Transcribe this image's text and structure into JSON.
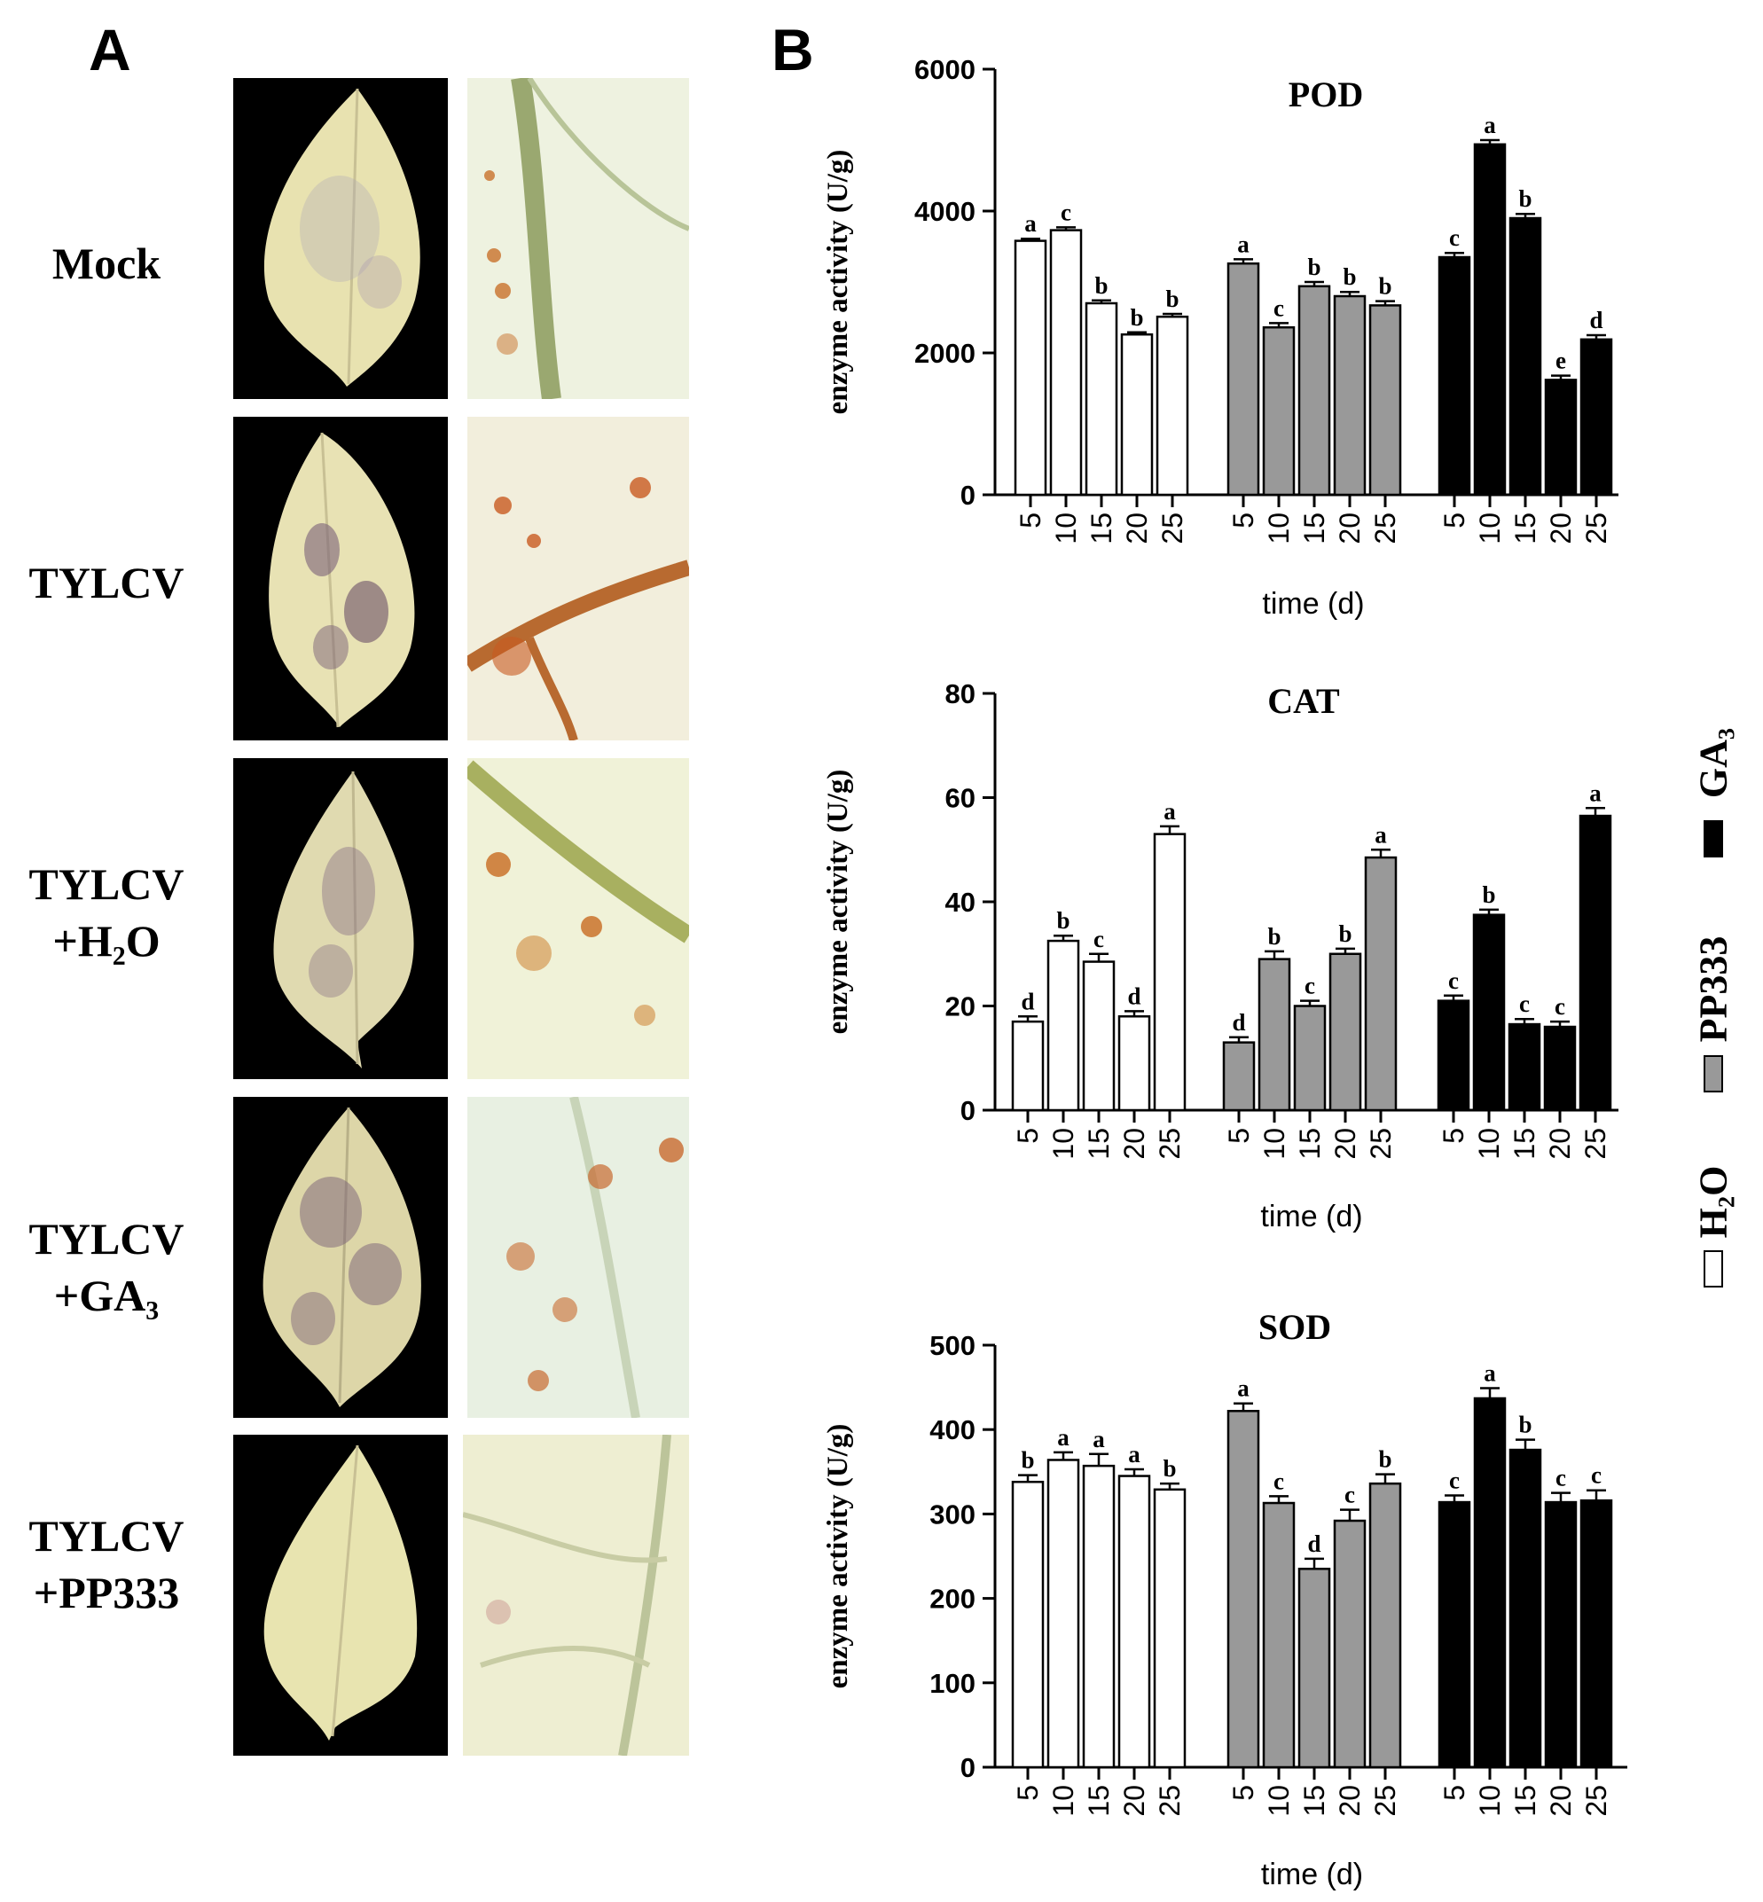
{
  "panel_a": {
    "letter": "A",
    "rows": [
      {
        "lines": [
          "Mock"
        ]
      },
      {
        "lines": [
          "TYLCV"
        ]
      },
      {
        "lines": [
          "TYLCV",
          "+H₂O"
        ]
      },
      {
        "lines": [
          "TYLCV",
          "+GA₃"
        ]
      },
      {
        "lines": [
          "TYLCV",
          "+PP333"
        ]
      }
    ]
  },
  "panel_b": {
    "letter": "B"
  },
  "legend": [
    {
      "label": "GA₃",
      "color": "#000000"
    },
    {
      "label": "PP333",
      "color": "#999999"
    },
    {
      "label": "H₂O",
      "color": "#ffffff"
    }
  ],
  "chart_data": [
    {
      "type": "bar",
      "title": "POD",
      "ylabel": "enzyme activity (U/g)",
      "xlabel": "time (d)",
      "ylim": [
        0,
        6000
      ],
      "yticks": [
        0,
        2000,
        4000,
        6000
      ],
      "categories": [
        "5",
        "10",
        "15",
        "20",
        "25"
      ],
      "series": [
        {
          "color": "#ffffff",
          "values": [
            3580,
            3730,
            2700,
            2260,
            2510
          ],
          "errors": [
            30,
            40,
            40,
            30,
            40
          ],
          "letters": [
            "a",
            "c",
            "b",
            "b",
            "b"
          ]
        },
        {
          "color": "#999999",
          "values": [
            3260,
            2360,
            2940,
            2800,
            2670
          ],
          "errors": [
            60,
            60,
            60,
            60,
            60
          ],
          "letters": [
            "a",
            "c",
            "b",
            "b",
            "b"
          ]
        },
        {
          "color": "#000000",
          "values": [
            3350,
            4940,
            3900,
            1620,
            2190
          ],
          "errors": [
            60,
            60,
            60,
            60,
            60
          ],
          "letters": [
            "c",
            "a",
            "b",
            "e",
            "d"
          ]
        }
      ]
    },
    {
      "type": "bar",
      "title": "CAT",
      "ylabel": "enzyme activity (U/g)",
      "xlabel": "time (d)",
      "ylim": [
        0,
        80
      ],
      "yticks": [
        0,
        20,
        40,
        60,
        80
      ],
      "categories": [
        "5",
        "10",
        "15",
        "20",
        "25"
      ],
      "series": [
        {
          "color": "#ffffff",
          "values": [
            17,
            32.5,
            28.5,
            18,
            53
          ],
          "errors": [
            1,
            1,
            1.5,
            1,
            1.5
          ],
          "letters": [
            "d",
            "b",
            "c",
            "d",
            "a"
          ]
        },
        {
          "color": "#999999",
          "values": [
            13,
            29,
            20,
            30,
            48.5
          ],
          "errors": [
            1,
            1.5,
            1,
            1,
            1.5
          ],
          "letters": [
            "d",
            "b",
            "c",
            "b",
            "a"
          ]
        },
        {
          "color": "#000000",
          "values": [
            21,
            37.5,
            16.5,
            16,
            56.5
          ],
          "errors": [
            1,
            1,
            1,
            1,
            1.5
          ],
          "letters": [
            "c",
            "b",
            "c",
            "c",
            "a"
          ]
        }
      ]
    },
    {
      "type": "bar",
      "title": "SOD",
      "ylabel": "enzyme activity (U/g)",
      "xlabel": "time (d)",
      "ylim": [
        0,
        500
      ],
      "yticks": [
        0,
        100,
        200,
        300,
        400,
        500
      ],
      "categories": [
        "5",
        "10",
        "15",
        "20",
        "25"
      ],
      "series": [
        {
          "color": "#ffffff",
          "values": [
            338,
            364,
            357,
            345,
            329
          ],
          "errors": [
            8,
            9,
            14,
            8,
            7
          ],
          "letters": [
            "b",
            "a",
            "a",
            "a",
            "b"
          ]
        },
        {
          "color": "#999999",
          "values": [
            422,
            313,
            235,
            292,
            336
          ],
          "errors": [
            9,
            8,
            12,
            13,
            11
          ],
          "letters": [
            "a",
            "c",
            "d",
            "c",
            "b"
          ]
        },
        {
          "color": "#000000",
          "values": [
            314,
            437,
            376,
            314,
            316
          ],
          "errors": [
            8,
            12,
            12,
            11,
            12
          ],
          "letters": [
            "c",
            "a",
            "b",
            "c",
            "c"
          ]
        }
      ]
    }
  ]
}
